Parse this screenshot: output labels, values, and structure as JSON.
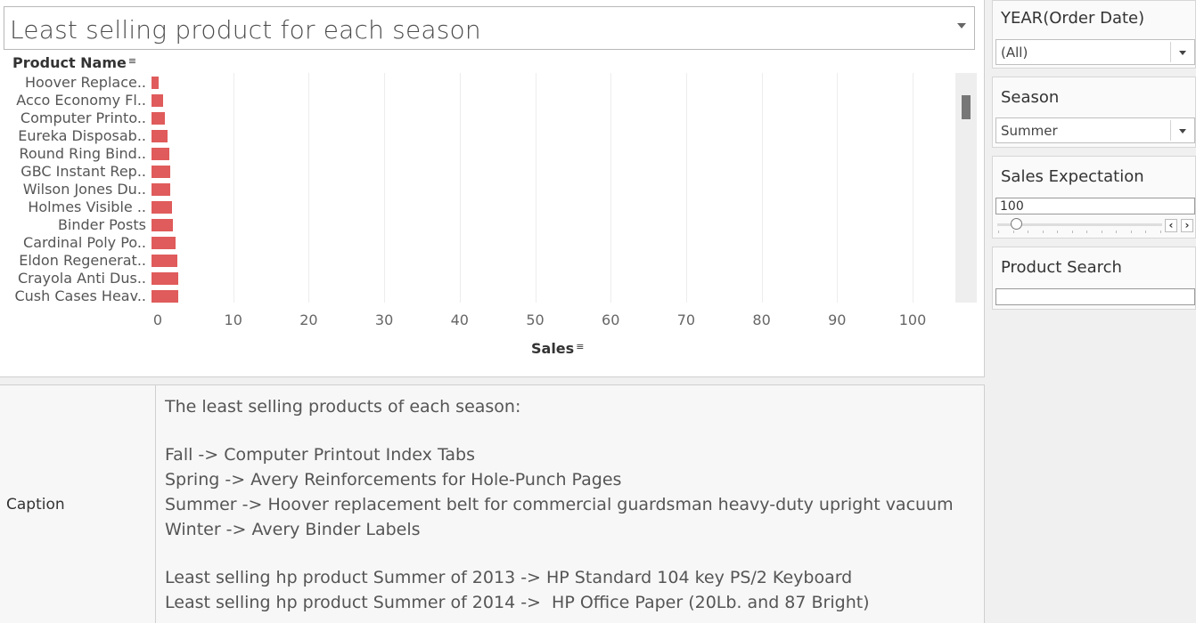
{
  "worksheet": {
    "title": "Least selling product for each season",
    "y_header": "Product Name",
    "x_header": "Sales",
    "sort_icon": "sort-icon"
  },
  "chart_data": {
    "type": "bar",
    "orientation": "horizontal",
    "categories": [
      "Hoover Replace..",
      "Acco Economy Fl..",
      "Computer Printo..",
      "Eureka Disposab..",
      "Round Ring Bind..",
      "GBC Instant Rep..",
      "Wilson Jones Du..",
      "Holmes Visible ..",
      "Binder Posts",
      "Cardinal Poly Po..",
      "Eldon Regenerat..",
      "Crayola Anti Dus..",
      "Cush Cases Heav.."
    ],
    "values": [
      0.4,
      0.9,
      1.2,
      1.5,
      1.8,
      1.9,
      1.9,
      2.1,
      2.2,
      2.6,
      2.8,
      2.9,
      2.9
    ],
    "xlabel": "Sales",
    "ylabel": "Product Name",
    "xlim": [
      0,
      105
    ],
    "xticks": [
      "0",
      "10",
      "20",
      "30",
      "40",
      "50",
      "60",
      "70",
      "80",
      "90",
      "100"
    ],
    "bar_color": "#e05b5b",
    "grid": true
  },
  "caption": {
    "label": "Caption",
    "header": "The least selling products of each season:",
    "season_lines": [
      "Fall -> Computer Printout Index Tabs",
      "Spring -> Avery Reinforcements for Hole-Punch Pages",
      "Summer -> Hoover replacement belt for commercial guardsman heavy-duty upright vacuum",
      "Winter -> Avery Binder Labels"
    ],
    "hp_lines": [
      "Least selling hp product Summer of 2013 -> HP Standard 104 key PS/2 Keyboard",
      "Least selling hp product Summer of 2014 ->  HP Office Paper (20Lb. and 87 Bright)"
    ]
  },
  "filters": {
    "year": {
      "title": "YEAR(Order Date)",
      "value": "(All)"
    },
    "season": {
      "title": "Season",
      "value": "Summer"
    },
    "sales_expectation": {
      "title": "Sales Expectation",
      "value": "100",
      "slider_fraction": 0.0,
      "prev_icon": "chevron-left-icon",
      "next_icon": "chevron-right-icon"
    },
    "product_search": {
      "title": "Product Search",
      "value": ""
    }
  }
}
